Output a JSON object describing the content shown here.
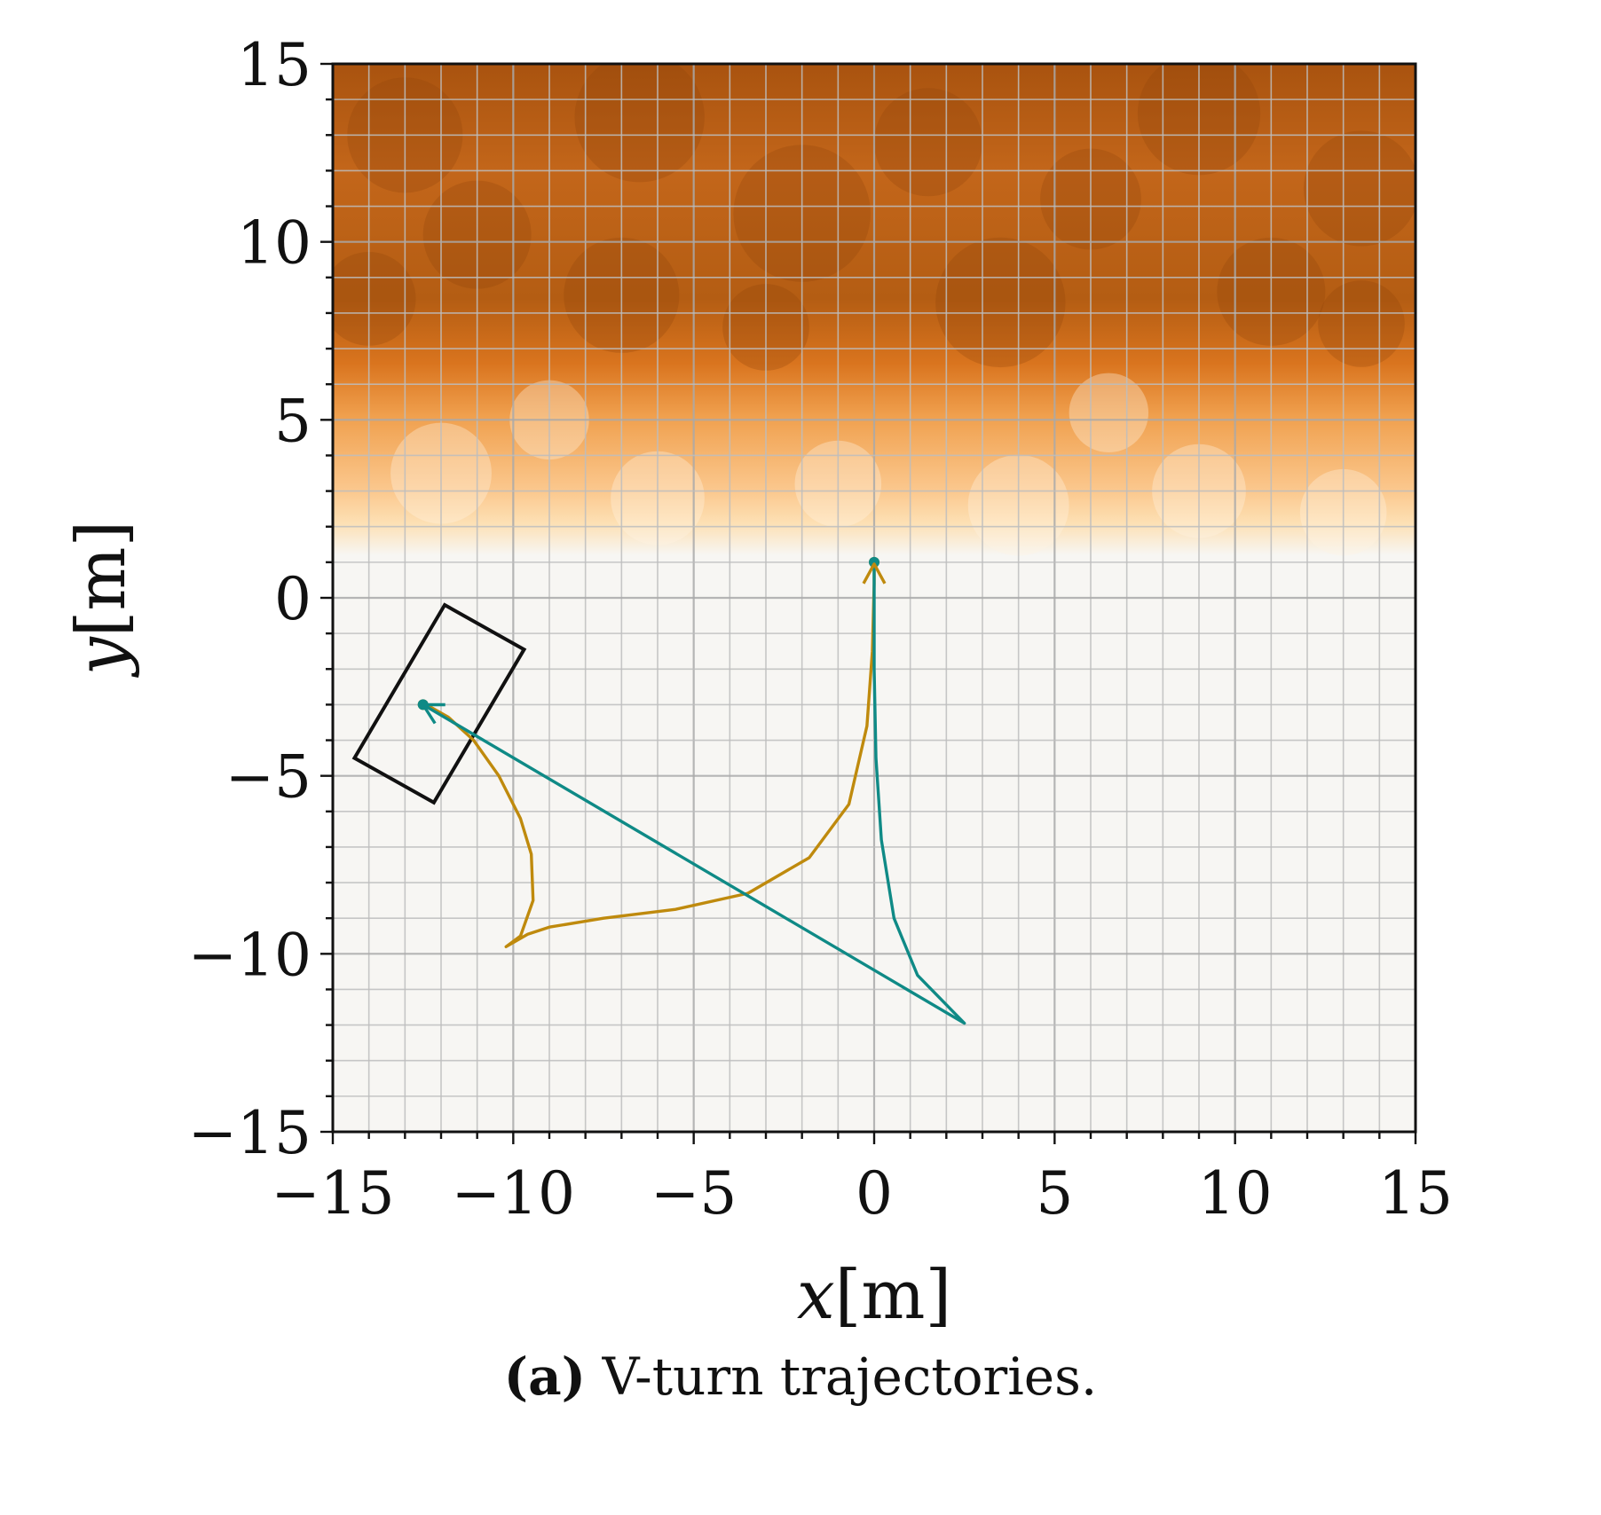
{
  "chart_data": {
    "type": "line",
    "xlabel": {
      "var": "x",
      "unit": "[m]"
    },
    "ylabel": {
      "var": "y",
      "unit": "[m]"
    },
    "xlim": [
      -15,
      15
    ],
    "ylim": [
      -15,
      15
    ],
    "x_ticks": [
      -15,
      -10,
      -5,
      0,
      5,
      10,
      15
    ],
    "y_ticks": [
      -15,
      -10,
      -5,
      0,
      5,
      10,
      15
    ],
    "x_tick_labels": [
      "−15",
      "−10",
      "−5",
      "0",
      "5",
      "10",
      "15"
    ],
    "y_tick_labels": [
      "−15",
      "−10",
      "−5",
      "0",
      "5",
      "10",
      "15"
    ],
    "grid": true,
    "grid_spacing": 1,
    "background_map": {
      "description": "orange occupancy cost field, dark above y≈7, fading to none below y≈1",
      "colors": [
        "#f7f6f3",
        "#fde0b4",
        "#f0a04e",
        "#d9741e",
        "#a9530f"
      ]
    },
    "series": [
      {
        "color": "#bf8a0d",
        "points": [
          [
            0,
            1
          ],
          [
            0.0,
            0.4
          ],
          [
            -0.05,
            -1.5
          ],
          [
            -0.2,
            -3.6
          ],
          [
            -0.7,
            -5.8
          ],
          [
            -1.8,
            -7.3
          ],
          [
            -3.5,
            -8.3
          ],
          [
            -5.5,
            -8.75
          ],
          [
            -7.5,
            -9.0
          ],
          [
            -9.0,
            -9.25
          ],
          [
            -9.6,
            -9.45
          ],
          [
            -10.2,
            -9.8
          ],
          [
            -9.8,
            -9.5
          ],
          [
            -9.45,
            -8.5
          ],
          [
            -9.5,
            -7.2
          ],
          [
            -9.8,
            -6.2
          ],
          [
            -10.4,
            -5.0
          ],
          [
            -11.1,
            -4.0
          ],
          [
            -11.8,
            -3.35
          ],
          [
            -12.5,
            -2.95
          ]
        ],
        "markers": [
          [
            0,
            1
          ],
          [
            -12.5,
            -3.0
          ]
        ]
      },
      {
        "color": "#0f8a86",
        "points": [
          [
            0,
            1
          ],
          [
            0.0,
            -2.0
          ],
          [
            0.05,
            -4.5
          ],
          [
            0.2,
            -6.8
          ],
          [
            0.55,
            -9.0
          ],
          [
            1.2,
            -10.6
          ],
          [
            2.5,
            -11.95
          ],
          [
            -12.5,
            -3.0
          ]
        ],
        "markers": [
          [
            0,
            1
          ],
          [
            -12.5,
            -3.0
          ]
        ]
      }
    ],
    "arrows": [
      {
        "at": [
          -12.5,
          -3.0
        ],
        "direction": [
          -1,
          0.55
        ],
        "color": "#0f8a86"
      },
      {
        "at": [
          0,
          0.95
        ],
        "direction": [
          0,
          1
        ],
        "color": "#bf8a0d"
      }
    ],
    "vehicle_box": {
      "color": "#111111",
      "corners": [
        [
          -11.9,
          -0.2
        ],
        [
          -9.7,
          -1.45
        ],
        [
          -12.2,
          -5.75
        ],
        [
          -14.4,
          -4.5
        ]
      ]
    }
  },
  "caption": {
    "tag": "(a)",
    "text": "V-turn trajectories."
  }
}
